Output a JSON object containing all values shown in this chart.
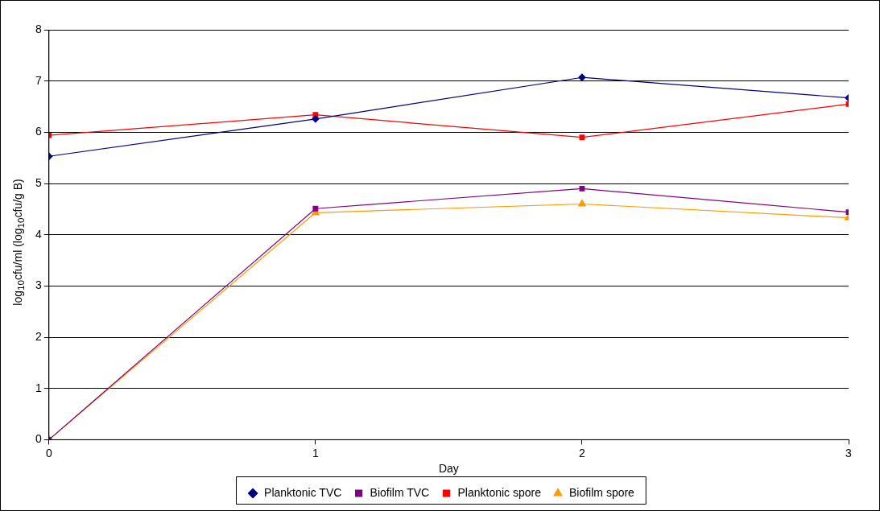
{
  "chart_data": {
    "type": "line",
    "xlabel": "Day",
    "ylabel": "log$_{10}$cfu/ml (log$_{10}$cfu/g B)",
    "x": [
      0,
      1,
      2,
      3
    ],
    "xlim": [
      0,
      3
    ],
    "xticks": [
      0,
      1,
      2,
      3
    ],
    "ylim": [
      0,
      8
    ],
    "yticks": [
      0,
      1,
      2,
      3,
      4,
      5,
      6,
      7,
      8
    ],
    "grid": "y",
    "legend": "bottom",
    "line_style": "solid",
    "series": [
      {
        "name": "Planktonic TVC",
        "color": "#000080",
        "marker": "diamond",
        "values": [
          5.53,
          6.26,
          7.07,
          6.67
        ]
      },
      {
        "name": "Biofilm TVC",
        "color": "#800080",
        "marker": "square",
        "values": [
          0,
          4.51,
          4.9,
          4.44
        ]
      },
      {
        "name": "Planktonic spore",
        "color": "#ff0000",
        "marker": "square",
        "values": [
          5.94,
          6.34,
          5.9,
          6.55
        ]
      },
      {
        "name": "Biofilm spore",
        "color": "#ff9900",
        "marker": "triangle",
        "values": [
          0,
          4.43,
          4.6,
          4.33
        ]
      }
    ]
  }
}
